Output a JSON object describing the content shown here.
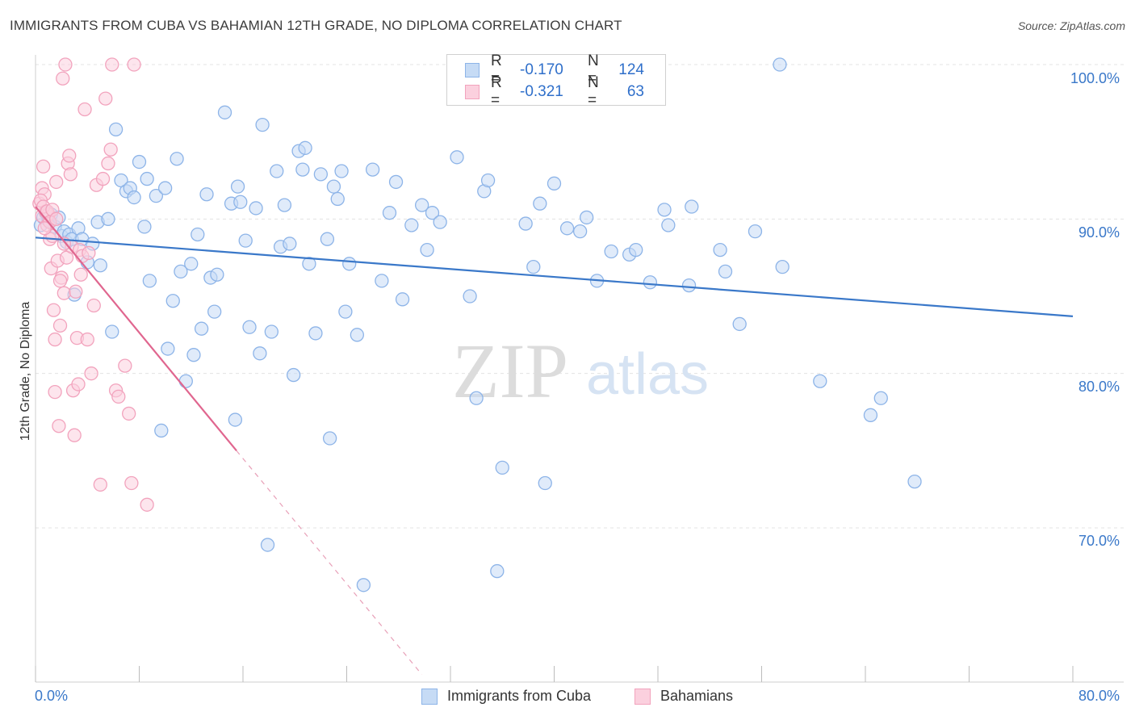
{
  "title": "IMMIGRANTS FROM CUBA VS BAHAMIAN 12TH GRADE, NO DIPLOMA CORRELATION CHART",
  "source": "Source: ZipAtlas.com",
  "watermark": {
    "zip": "ZIP",
    "atlas": "atlas"
  },
  "legend": {
    "rows": [
      {
        "r_label": "R =",
        "r_value": "-0.170",
        "n_label": "N =",
        "n_value": "124",
        "color": "#8db4e8",
        "fill": "#c6dbf5"
      },
      {
        "r_label": "R =",
        "r_value": "-0.321",
        "n_label": "N =",
        "n_value": "63",
        "color": "#f2a3bd",
        "fill": "#fbd0de"
      }
    ]
  },
  "bottom_legend": {
    "series1": "Immigrants from Cuba",
    "series2": "Bahamians"
  },
  "axis_labels": {
    "y": "12th Grade, No Diploma",
    "x_min": "0.0%",
    "x_max": "80.0%",
    "y_ticks": [
      "100.0%",
      "90.0%",
      "80.0%",
      "70.0%"
    ]
  },
  "chart_data": {
    "type": "scatter",
    "title": "IMMIGRANTS FROM CUBA VS BAHAMIAN 12TH GRADE, NO DIPLOMA CORRELATION CHART",
    "xlabel": "",
    "ylabel": "12th Grade, No Diploma",
    "xlim": [
      0,
      80
    ],
    "ylim": [
      60.5,
      101
    ],
    "y_ticks": [
      70,
      80,
      90,
      100
    ],
    "grid": true,
    "legend_position": "top-center",
    "series": [
      {
        "name": "Immigrants from Cuba",
        "color": "#3a78c9",
        "fill": "#c6dbf5",
        "trend": {
          "x": [
            0,
            80
          ],
          "y": [
            88.8,
            83.7
          ]
        },
        "points": [
          [
            0.4,
            89.6
          ],
          [
            0.6,
            90.1
          ],
          [
            0.8,
            90.4
          ],
          [
            1.0,
            89.9
          ],
          [
            1.2,
            90.3
          ],
          [
            1.5,
            89.5
          ],
          [
            1.8,
            90.1
          ],
          [
            2.0,
            88.9
          ],
          [
            2.2,
            89.2
          ],
          [
            2.4,
            88.5
          ],
          [
            2.6,
            89.0
          ],
          [
            2.8,
            88.7
          ],
          [
            3.0,
            85.1
          ],
          [
            3.3,
            89.4
          ],
          [
            3.6,
            88.7
          ],
          [
            4.0,
            87.2
          ],
          [
            4.4,
            88.4
          ],
          [
            4.8,
            89.8
          ],
          [
            5.0,
            87.0
          ],
          [
            5.6,
            90.0
          ],
          [
            5.9,
            82.7
          ],
          [
            6.2,
            95.8
          ],
          [
            6.6,
            92.5
          ],
          [
            7.0,
            91.8
          ],
          [
            7.3,
            92.0
          ],
          [
            7.6,
            91.4
          ],
          [
            8.0,
            93.7
          ],
          [
            8.4,
            89.5
          ],
          [
            8.6,
            92.6
          ],
          [
            8.8,
            86.0
          ],
          [
            9.3,
            91.5
          ],
          [
            9.7,
            76.3
          ],
          [
            10.0,
            92.0
          ],
          [
            10.2,
            81.6
          ],
          [
            10.6,
            84.7
          ],
          [
            10.9,
            93.9
          ],
          [
            11.2,
            86.6
          ],
          [
            11.6,
            79.5
          ],
          [
            12.0,
            87.1
          ],
          [
            12.2,
            81.2
          ],
          [
            12.5,
            89.0
          ],
          [
            12.8,
            82.9
          ],
          [
            13.2,
            91.6
          ],
          [
            13.5,
            86.2
          ],
          [
            13.8,
            84.0
          ],
          [
            14.0,
            86.4
          ],
          [
            14.6,
            96.9
          ],
          [
            15.1,
            91.0
          ],
          [
            15.4,
            77.0
          ],
          [
            15.6,
            92.1
          ],
          [
            15.8,
            91.1
          ],
          [
            16.2,
            88.6
          ],
          [
            16.5,
            83.0
          ],
          [
            17.0,
            90.7
          ],
          [
            17.3,
            81.3
          ],
          [
            17.5,
            96.1
          ],
          [
            17.9,
            68.9
          ],
          [
            18.2,
            82.7
          ],
          [
            18.6,
            93.1
          ],
          [
            18.9,
            88.2
          ],
          [
            19.2,
            90.9
          ],
          [
            19.6,
            88.4
          ],
          [
            19.9,
            79.9
          ],
          [
            20.3,
            94.4
          ],
          [
            20.6,
            93.2
          ],
          [
            20.8,
            94.6
          ],
          [
            21.1,
            87.1
          ],
          [
            21.6,
            82.6
          ],
          [
            22.0,
            92.9
          ],
          [
            22.5,
            88.7
          ],
          [
            22.7,
            75.8
          ],
          [
            23.0,
            92.1
          ],
          [
            23.3,
            91.3
          ],
          [
            23.6,
            93.1
          ],
          [
            23.9,
            84.0
          ],
          [
            24.2,
            87.1
          ],
          [
            24.8,
            82.5
          ],
          [
            25.3,
            66.3
          ],
          [
            26.0,
            93.2
          ],
          [
            26.7,
            86.0
          ],
          [
            27.3,
            90.4
          ],
          [
            27.8,
            92.4
          ],
          [
            28.3,
            84.8
          ],
          [
            29.0,
            89.6
          ],
          [
            29.8,
            90.9
          ],
          [
            30.2,
            88.0
          ],
          [
            30.6,
            90.4
          ],
          [
            31.2,
            89.8
          ],
          [
            32.5,
            94.0
          ],
          [
            33.5,
            85.0
          ],
          [
            34.0,
            78.4
          ],
          [
            34.6,
            91.8
          ],
          [
            34.9,
            92.5
          ],
          [
            35.6,
            67.2
          ],
          [
            36.0,
            73.9
          ],
          [
            37.8,
            89.7
          ],
          [
            38.4,
            86.9
          ],
          [
            38.9,
            91.0
          ],
          [
            39.3,
            72.9
          ],
          [
            40.0,
            92.3
          ],
          [
            41.0,
            89.4
          ],
          [
            42.0,
            89.2
          ],
          [
            42.5,
            90.1
          ],
          [
            43.3,
            86.0
          ],
          [
            44.4,
            87.9
          ],
          [
            45.8,
            87.7
          ],
          [
            46.3,
            88.0
          ],
          [
            47.4,
            85.9
          ],
          [
            48.5,
            90.6
          ],
          [
            48.8,
            89.6
          ],
          [
            50.4,
            85.7
          ],
          [
            50.6,
            90.8
          ],
          [
            52.8,
            88.0
          ],
          [
            53.2,
            86.6
          ],
          [
            54.3,
            83.2
          ],
          [
            55.5,
            89.2
          ],
          [
            57.4,
            100.0
          ],
          [
            57.6,
            86.9
          ],
          [
            60.5,
            79.5
          ],
          [
            64.4,
            77.3
          ],
          [
            65.2,
            78.4
          ],
          [
            67.8,
            73.0
          ]
        ]
      },
      {
        "name": "Bahamians",
        "color": "#e0668f",
        "fill": "#fbd0de",
        "trend": {
          "x": [
            0,
            15.5
          ],
          "y": [
            90.8,
            75.0
          ]
        },
        "trend_dashed": {
          "x": [
            15.5,
            29.8
          ],
          "y": [
            75.0,
            60.5
          ]
        },
        "points": [
          [
            0.3,
            91.0
          ],
          [
            0.5,
            90.2
          ],
          [
            0.5,
            92.0
          ],
          [
            0.6,
            93.4
          ],
          [
            0.7,
            91.6
          ],
          [
            0.8,
            90.5
          ],
          [
            0.9,
            89.6
          ],
          [
            1.0,
            90.3
          ],
          [
            1.1,
            88.7
          ],
          [
            1.2,
            86.8
          ],
          [
            1.3,
            88.9
          ],
          [
            1.4,
            84.1
          ],
          [
            1.5,
            82.2
          ],
          [
            1.5,
            78.8
          ],
          [
            1.6,
            92.4
          ],
          [
            1.7,
            87.3
          ],
          [
            1.8,
            76.6
          ],
          [
            1.9,
            83.1
          ],
          [
            2.0,
            86.2
          ],
          [
            2.1,
            99.1
          ],
          [
            2.2,
            85.2
          ],
          [
            2.3,
            100.0
          ],
          [
            2.4,
            87.5
          ],
          [
            2.5,
            93.6
          ],
          [
            2.6,
            94.1
          ],
          [
            2.7,
            92.9
          ],
          [
            2.8,
            88.2
          ],
          [
            2.9,
            78.9
          ],
          [
            3.0,
            76.0
          ],
          [
            3.2,
            82.3
          ],
          [
            3.3,
            79.3
          ],
          [
            3.4,
            88.0
          ],
          [
            3.5,
            86.4
          ],
          [
            3.6,
            87.6
          ],
          [
            3.8,
            97.1
          ],
          [
            4.0,
            82.2
          ],
          [
            4.1,
            87.8
          ],
          [
            4.3,
            80.0
          ],
          [
            4.5,
            84.4
          ],
          [
            4.7,
            92.2
          ],
          [
            5.0,
            72.8
          ],
          [
            5.2,
            92.6
          ],
          [
            5.4,
            97.8
          ],
          [
            5.6,
            93.6
          ],
          [
            5.8,
            94.5
          ],
          [
            5.9,
            100.0
          ],
          [
            6.2,
            78.9
          ],
          [
            6.4,
            78.5
          ],
          [
            6.9,
            80.5
          ],
          [
            7.2,
            77.4
          ],
          [
            7.4,
            72.9
          ],
          [
            7.6,
            100.0
          ],
          [
            8.6,
            71.5
          ],
          [
            0.4,
            91.2
          ],
          [
            0.6,
            90.8
          ],
          [
            0.9,
            90.5
          ],
          [
            1.1,
            89.8
          ],
          [
            1.3,
            90.6
          ],
          [
            0.7,
            89.4
          ],
          [
            1.6,
            90.0
          ],
          [
            2.2,
            88.4
          ],
          [
            1.9,
            86.0
          ],
          [
            3.1,
            85.3
          ]
        ]
      }
    ]
  }
}
